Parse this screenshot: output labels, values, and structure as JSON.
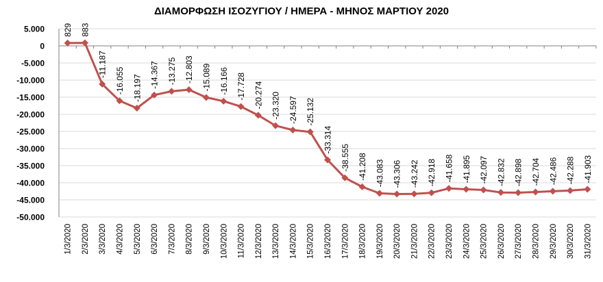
{
  "chart_data": {
    "type": "line",
    "title": "ΔΙΑΜΟΡΦΩΣΗ ΙΣΟΖΥΓΙΟΥ / ΗΜΕΡΑ - ΜΗΝΟΣ ΜΑΡΤΙΟΥ 2020",
    "xlabel": "",
    "ylabel": "",
    "ylim": [
      -50000,
      5000
    ],
    "y_ticks": [
      5000,
      0,
      -5000,
      -10000,
      -15000,
      -20000,
      -25000,
      -30000,
      -35000,
      -40000,
      -45000,
      -50000
    ],
    "y_tick_labels": [
      "5.000",
      "0",
      "-5.000",
      "-10.000",
      "-15.000",
      "-20.000",
      "-25.000",
      "-30.000",
      "-35.000",
      "-40.000",
      "-45.000",
      "-50.000"
    ],
    "categories": [
      "1/3/2020",
      "2/3/2020",
      "3/3/2020",
      "4/3/2020",
      "5/3/2020",
      "6/3/2020",
      "7/3/2020",
      "8/3/2020",
      "9/3/2020",
      "10/3/2020",
      "11/3/2020",
      "12/3/2020",
      "13/3/2020",
      "14/3/2020",
      "15/3/2020",
      "16/3/2020",
      "17/3/2020",
      "18/3/2020",
      "19/3/2020",
      "20/3/2020",
      "21/3/2020",
      "22/3/2020",
      "23/3/2020",
      "24/3/2020",
      "25/3/2020",
      "26/3/2020",
      "27/3/2020",
      "28/3/2020",
      "29/3/2020",
      "30/3/2020",
      "31/3/2020"
    ],
    "values": [
      829,
      883,
      -11187,
      -16055,
      -18197,
      -14367,
      -13275,
      -12803,
      -15089,
      -16166,
      -17728,
      -20274,
      -23320,
      -24597,
      -25132,
      -33314,
      -38555,
      -41208,
      -43083,
      -43306,
      -43242,
      -42918,
      -41658,
      -41895,
      -42097,
      -42832,
      -42898,
      -42704,
      -42486,
      -42288,
      -41903
    ],
    "value_labels": [
      "829",
      "883",
      "-11.187",
      "-16.055",
      "-18.197",
      "-14.367",
      "-13.275",
      "-12.803",
      "-15.089",
      "-16.166",
      "-17.728",
      "-20.274",
      "-23.320",
      "-24.597",
      "-25.132",
      "-33.314",
      "-38.555",
      "-41.208",
      "-43.083",
      "-43.306",
      "-43.242",
      "-42.918",
      "-41.658",
      "-41.895",
      "-42.097",
      "-42.832",
      "-42.898",
      "-42.704",
      "-42.486",
      "-42.288",
      "-41.903"
    ],
    "grid": true,
    "legend": "none",
    "series_color": "#c0504d"
  }
}
